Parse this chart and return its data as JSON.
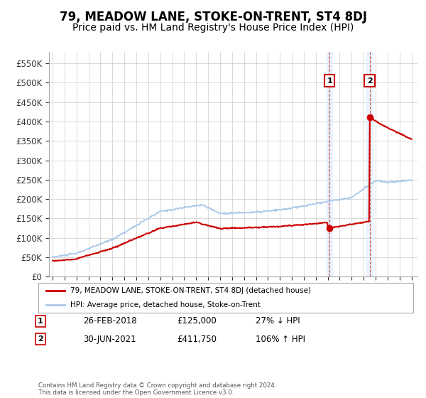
{
  "title": "79, MEADOW LANE, STOKE-ON-TRENT, ST4 8DJ",
  "subtitle": "Price paid vs. HM Land Registry's House Price Index (HPI)",
  "title_fontsize": 12,
  "subtitle_fontsize": 10,
  "ylabel_ticks": [
    "£0",
    "£50K",
    "£100K",
    "£150K",
    "£200K",
    "£250K",
    "£300K",
    "£350K",
    "£400K",
    "£450K",
    "£500K",
    "£550K"
  ],
  "ytick_values": [
    0,
    50000,
    100000,
    150000,
    200000,
    250000,
    300000,
    350000,
    400000,
    450000,
    500000,
    550000
  ],
  "ylim": [
    0,
    580000
  ],
  "hpi_color": "#aac8e8",
  "price_color": "#cc0000",
  "sale1_x": 2018.15,
  "sale1_y": 125000,
  "sale2_x": 2021.5,
  "sale2_y": 411750,
  "legend1": "79, MEADOW LANE, STOKE-ON-TRENT, ST4 8DJ (detached house)",
  "legend2": "HPI: Average price, detached house, Stoke-on-Trent",
  "sale1_date": "26-FEB-2018",
  "sale1_price": "£125,000",
  "sale1_note": "27% ↓ HPI",
  "sale2_date": "30-JUN-2021",
  "sale2_price": "£411,750",
  "sale2_note": "106% ↑ HPI",
  "footer": "Contains HM Land Registry data © Crown copyright and database right 2024.\nThis data is licensed under the Open Government Licence v3.0.",
  "background_color": "#ffffff",
  "grid_color": "#cccccc",
  "box_color": "#cc0000",
  "xlim_left": 1994.7,
  "xlim_right": 2025.5
}
